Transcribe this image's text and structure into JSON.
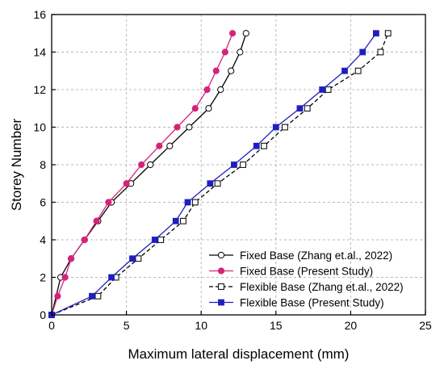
{
  "chart_data": {
    "type": "line",
    "xlabel": "Maximum lateral displacement (mm)",
    "ylabel": "Storey Number",
    "xlim": [
      0,
      25
    ],
    "ylim": [
      0,
      16
    ],
    "xticks": [
      0,
      5,
      10,
      15,
      20,
      25
    ],
    "yticks": [
      0,
      2,
      4,
      6,
      8,
      10,
      12,
      14,
      16
    ],
    "grid": true,
    "legend_position": "bottom-right",
    "series": [
      {
        "name": "Fixed Base (Zhang et.al., 2022)",
        "color": "#000000",
        "line": "solid",
        "marker": "open-circle",
        "x": [
          0,
          0.6,
          1.3,
          2.2,
          3.1,
          4.0,
          5.3,
          6.6,
          7.9,
          9.2,
          10.5,
          11.3,
          12.0,
          12.6,
          13.0
        ],
        "y": [
          0,
          2,
          3,
          4,
          5,
          6,
          7,
          8,
          9,
          10,
          11,
          12,
          13,
          14,
          15
        ]
      },
      {
        "name": "Fixed Base (Present Study)",
        "color": "#d6237a",
        "line": "solid",
        "marker": "filled-circle",
        "x": [
          0,
          0.4,
          0.9,
          1.3,
          2.2,
          3.0,
          3.8,
          5.0,
          6.0,
          7.2,
          8.4,
          9.6,
          10.4,
          11.0,
          11.6,
          12.1
        ],
        "y": [
          0,
          1,
          2,
          3,
          4,
          5,
          6,
          7,
          8,
          9,
          10,
          11,
          12,
          13,
          14,
          15
        ]
      },
      {
        "name": "Flexible Base (Zhang et.al., 2022)",
        "color": "#000000",
        "line": "dashed",
        "marker": "open-square",
        "x": [
          0,
          3.1,
          4.3,
          5.8,
          7.3,
          8.8,
          9.6,
          11.1,
          12.8,
          14.2,
          15.6,
          17.1,
          18.5,
          20.5,
          22.0,
          22.5
        ],
        "y": [
          0,
          1,
          2,
          3,
          4,
          5,
          6,
          7,
          8,
          9,
          10,
          11,
          12,
          13,
          14,
          15
        ]
      },
      {
        "name": "Flexible Base (Present Study)",
        "color": "#1f1fbf",
        "line": "solid",
        "marker": "filled-square",
        "x": [
          0,
          2.7,
          4.0,
          5.4,
          6.9,
          8.3,
          9.1,
          10.6,
          12.2,
          13.7,
          15.0,
          16.6,
          18.1,
          19.6,
          20.8,
          21.7
        ],
        "y": [
          0,
          1,
          2,
          3,
          4,
          5,
          6,
          7,
          8,
          9,
          10,
          11,
          12,
          13,
          14,
          15
        ]
      }
    ]
  }
}
